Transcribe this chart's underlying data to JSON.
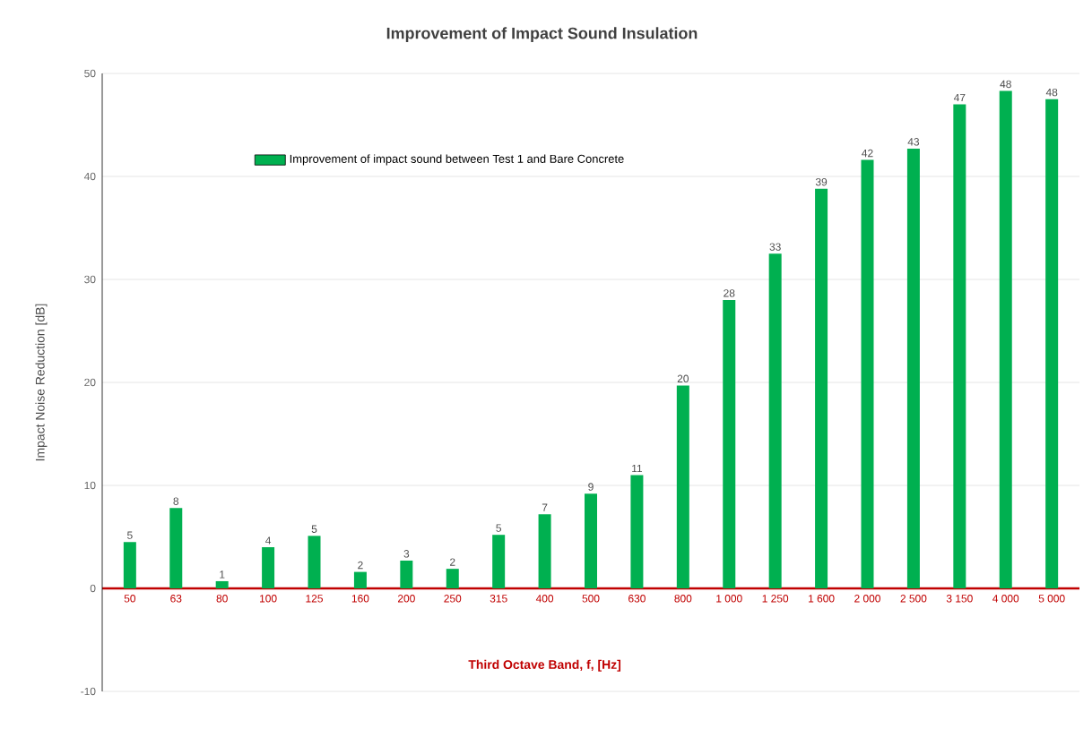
{
  "chart_data": {
    "type": "bar",
    "title": "Improvement of Impact Sound Insulation",
    "xlabel": "Third Octave Band, f, [Hz]",
    "ylabel": "Impact Noise Reduction [dB]",
    "categories": [
      "50",
      "63",
      "80",
      "100",
      "125",
      "160",
      "200",
      "250",
      "315",
      "400",
      "500",
      "630",
      "800",
      "1 000",
      "1 250",
      "1 600",
      "2 000",
      "2 500",
      "3 150",
      "4 000",
      "5 000"
    ],
    "series": [
      {
        "name": "Improvement of impact sound between Test 1 and Bare Concrete",
        "color": "#00b050",
        "values": [
          4.5,
          7.8,
          0.7,
          4.0,
          5.1,
          1.6,
          2.7,
          1.9,
          5.2,
          7.2,
          9.2,
          11.0,
          19.7,
          28.0,
          32.5,
          38.8,
          41.6,
          42.7,
          47.0,
          48.3,
          47.5
        ],
        "value_labels": [
          "5",
          "8",
          "1",
          "4",
          "5",
          "2",
          "3",
          "2",
          "5",
          "7",
          "9",
          "11",
          "20",
          "28",
          "33",
          "39",
          "42",
          "43",
          "47",
          "48",
          "48"
        ]
      }
    ],
    "ylim": [
      -10,
      50
    ],
    "yticks": [
      -10,
      0,
      10,
      20,
      30,
      40,
      50
    ],
    "grid": "y",
    "legend": "top left"
  }
}
